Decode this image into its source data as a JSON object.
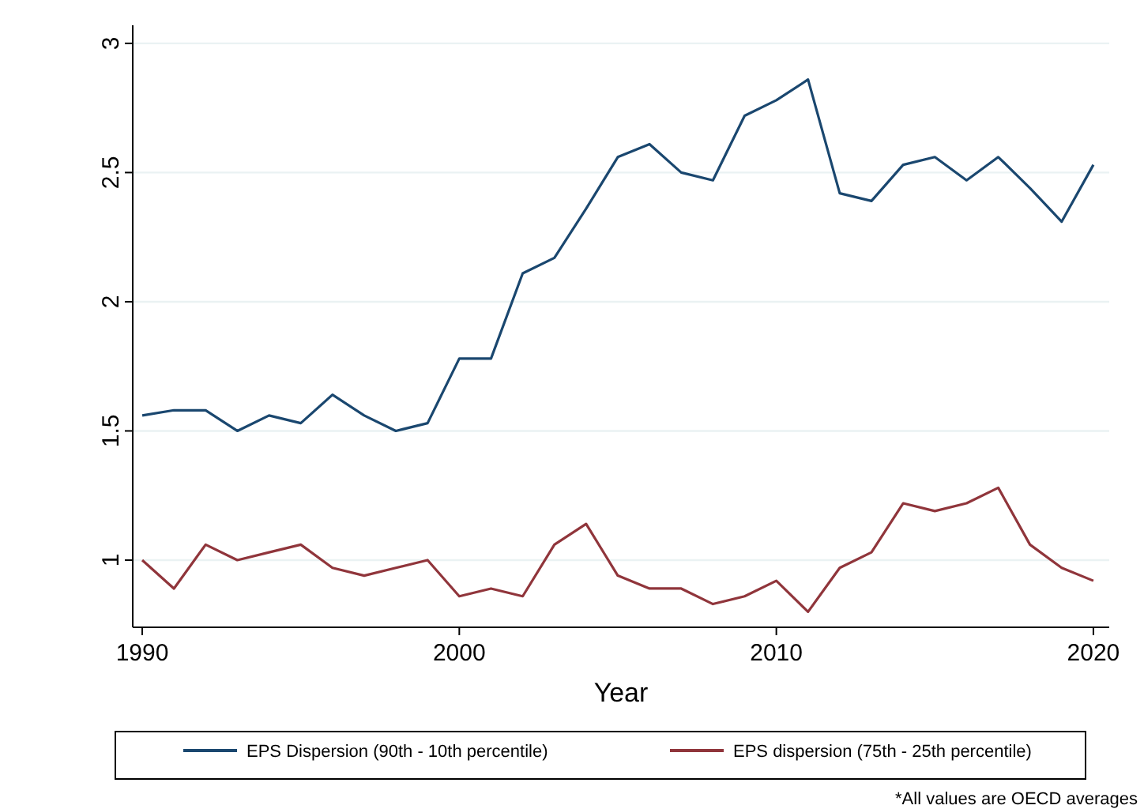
{
  "chart_data": {
    "type": "line",
    "xlabel": "Year",
    "xlim": [
      1989.7,
      2020.5
    ],
    "xticks": [
      1990,
      2000,
      2010,
      2020
    ],
    "ylim": [
      0.74,
      3.07
    ],
    "yticks": [
      1,
      1.5,
      2,
      2.5,
      3
    ],
    "grid": "y",
    "legend": "bottom",
    "line_style": "solid",
    "marker": "none",
    "x": [
      1990,
      1991,
      1992,
      1993,
      1994,
      1995,
      1996,
      1997,
      1998,
      1999,
      2000,
      2001,
      2002,
      2003,
      2004,
      2005,
      2006,
      2007,
      2008,
      2009,
      2010,
      2011,
      2012,
      2013,
      2014,
      2015,
      2016,
      2017,
      2018,
      2019,
      2020
    ],
    "series": [
      {
        "name": "EPS Dispersion (90th - 10th percentile)",
        "color": "#1a476f",
        "values": [
          1.56,
          1.58,
          1.58,
          1.5,
          1.56,
          1.53,
          1.64,
          1.56,
          1.5,
          1.53,
          1.78,
          1.78,
          2.11,
          2.17,
          2.36,
          2.56,
          2.61,
          2.5,
          2.47,
          2.72,
          2.78,
          2.86,
          2.42,
          2.39,
          2.53,
          2.56,
          2.47,
          2.56,
          2.44,
          2.31,
          2.53
        ]
      },
      {
        "name": "EPS dispersion (75th - 25th percentile)",
        "color": "#90353b",
        "values": [
          1,
          0.89,
          1.06,
          1,
          1.03,
          1.06,
          0.97,
          0.94,
          0.97,
          1,
          0.86,
          0.89,
          0.86,
          1.06,
          1.14,
          0.94,
          0.89,
          0.89,
          0.83,
          0.86,
          0.92,
          0.8,
          0.97,
          1.03,
          1.22,
          1.19,
          1.22,
          1.28,
          1.06,
          0.97,
          0.92
        ]
      }
    ],
    "annotations": [
      "*All values are OECD averages"
    ]
  }
}
